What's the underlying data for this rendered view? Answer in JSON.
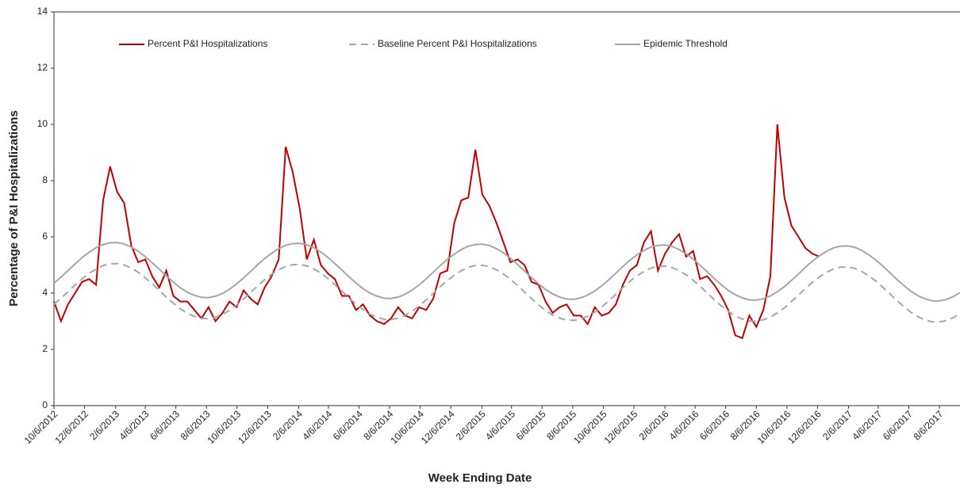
{
  "chart_data": {
    "type": "line",
    "y_label": "Percentage of P&I Hospitalizations",
    "x_label": "Week Ending Date",
    "x": [
      "10/6/2012",
      "10/20/2012",
      "11/3/2012",
      "11/17/2012",
      "12/1/2012",
      "12/15/2012",
      "12/29/2012",
      "1/12/2013",
      "1/26/2013",
      "2/9/2013",
      "2/23/2013",
      "3/9/2013",
      "3/23/2013",
      "4/6/2013",
      "4/20/2013",
      "5/4/2013",
      "5/18/2013",
      "6/1/2013",
      "6/15/2013",
      "6/29/2013",
      "7/13/2013",
      "7/27/2013",
      "8/10/2013",
      "8/24/2013",
      "9/7/2013",
      "9/21/2013",
      "10/5/2013",
      "10/19/2013",
      "11/2/2013",
      "11/16/2013",
      "11/30/2013",
      "12/14/2013",
      "12/28/2013",
      "1/11/2014",
      "1/25/2014",
      "2/8/2014",
      "2/22/2014",
      "3/8/2014",
      "3/22/2014",
      "4/5/2014",
      "4/19/2014",
      "5/3/2014",
      "5/17/2014",
      "5/31/2014",
      "6/14/2014",
      "6/28/2014",
      "7/12/2014",
      "7/26/2014",
      "8/9/2014",
      "8/23/2014",
      "9/6/2014",
      "9/20/2014",
      "10/4/2014",
      "10/18/2014",
      "11/1/2014",
      "11/15/2014",
      "11/29/2014",
      "12/13/2014",
      "12/27/2014",
      "1/10/2015",
      "1/24/2015",
      "2/7/2015",
      "2/21/2015",
      "3/7/2015",
      "3/21/2015",
      "4/4/2015",
      "4/18/2015",
      "5/2/2015",
      "5/16/2015",
      "5/30/2015",
      "6/13/2015",
      "6/27/2015",
      "7/11/2015",
      "7/25/2015",
      "8/8/2015",
      "8/22/2015",
      "9/5/2015",
      "9/19/2015",
      "10/3/2015",
      "10/17/2015",
      "10/31/2015",
      "11/14/2015",
      "11/28/2015",
      "12/12/2015",
      "12/26/2015",
      "1/9/2016",
      "1/23/2016",
      "2/6/2016",
      "2/20/2016",
      "3/5/2016",
      "3/19/2016",
      "4/2/2016",
      "4/16/2016",
      "4/30/2016",
      "5/14/2016",
      "5/28/2016",
      "6/11/2016",
      "6/25/2016",
      "7/9/2016",
      "7/23/2016",
      "8/6/2016",
      "8/20/2016",
      "9/3/2016",
      "9/17/2016",
      "10/1/2016",
      "10/15/2016",
      "10/29/2016",
      "11/12/2016",
      "11/26/2016",
      "12/10/2016",
      "12/24/2016",
      "1/7/2017",
      "1/21/2017",
      "2/4/2017",
      "2/18/2017",
      "3/4/2017",
      "3/18/2017",
      "4/1/2017",
      "4/15/2017",
      "4/29/2017",
      "5/13/2017",
      "5/27/2017",
      "6/10/2017",
      "6/24/2017",
      "7/8/2017",
      "7/22/2017",
      "8/5/2017",
      "8/19/2017",
      "9/2/2017",
      "9/16/2017"
    ],
    "series": [
      {
        "name": "Percent P&I Hospitalizations",
        "color": "#c00000",
        "style": "solid",
        "values": [
          3.7,
          3.0,
          3.6,
          4.0,
          4.4,
          4.5,
          4.3,
          7.3,
          8.5,
          7.6,
          7.2,
          5.7,
          5.1,
          5.2,
          4.6,
          4.2,
          4.8,
          3.9,
          3.7,
          3.7,
          3.4,
          3.1,
          3.5,
          3.0,
          3.3,
          3.7,
          3.5,
          4.1,
          3.8,
          3.6,
          4.2,
          4.6,
          5.2,
          9.2,
          8.3,
          7.0,
          5.2,
          5.9,
          5.0,
          4.7,
          4.5,
          3.9,
          3.9,
          3.4,
          3.6,
          3.2,
          3.0,
          2.9,
          3.1,
          3.5,
          3.2,
          3.1,
          3.5,
          3.4,
          3.8,
          4.7,
          4.8,
          6.5,
          7.3,
          7.4,
          9.1,
          7.5,
          7.1,
          6.5,
          5.8,
          5.1,
          5.2,
          5.0,
          4.4,
          4.3,
          3.7,
          3.3,
          3.5,
          3.6,
          3.2,
          3.2,
          2.9,
          3.5,
          3.2,
          3.3,
          3.6,
          4.3,
          4.8,
          5.0,
          5.8,
          6.2,
          4.8,
          5.4,
          5.8,
          6.1,
          5.3,
          5.5,
          4.5,
          4.6,
          4.3,
          3.9,
          3.4,
          2.5,
          2.4,
          3.2,
          2.8,
          3.4,
          4.6,
          10.0,
          7.4,
          6.4,
          6.0,
          5.6,
          5.4,
          5.3,
          null,
          null,
          null,
          null,
          null,
          null,
          null,
          null,
          null,
          null,
          null,
          null,
          null,
          null,
          null,
          null,
          null,
          null,
          null,
          null
        ]
      },
      {
        "name": "Baseline Percent P&I Hospitalizations",
        "color": "#a6a6a6",
        "style": "dashed",
        "values": [
          3.6,
          3.82,
          4.05,
          4.29,
          4.51,
          4.7,
          4.86,
          4.98,
          5.04,
          5.05,
          5.0,
          4.89,
          4.74,
          4.55,
          4.33,
          4.1,
          3.86,
          3.64,
          3.44,
          3.28,
          3.17,
          3.1,
          3.09,
          3.14,
          3.24,
          3.39,
          3.57,
          3.79,
          4.02,
          4.26,
          4.48,
          4.67,
          4.83,
          4.95,
          5.01,
          5.02,
          4.97,
          4.86,
          4.71,
          4.52,
          4.3,
          4.07,
          3.83,
          3.61,
          3.41,
          3.25,
          3.14,
          3.07,
          3.06,
          3.11,
          3.21,
          3.36,
          3.54,
          3.76,
          3.99,
          4.23,
          4.45,
          4.64,
          4.8,
          4.92,
          4.98,
          4.99,
          4.94,
          4.83,
          4.68,
          4.49,
          4.27,
          4.04,
          3.8,
          3.58,
          3.38,
          3.22,
          3.11,
          3.04,
          3.03,
          3.08,
          3.18,
          3.33,
          3.51,
          3.73,
          3.96,
          4.2,
          4.42,
          4.61,
          4.77,
          4.89,
          4.95,
          4.96,
          4.91,
          4.8,
          4.65,
          4.46,
          4.24,
          4.01,
          3.77,
          3.55,
          3.35,
          3.19,
          3.08,
          3.01,
          3.0,
          3.05,
          3.15,
          3.3,
          3.48,
          3.7,
          3.93,
          4.17,
          4.39,
          4.58,
          4.74,
          4.86,
          4.92,
          4.93,
          4.88,
          4.77,
          4.62,
          4.43,
          4.21,
          3.98,
          3.74,
          3.52,
          3.32,
          3.16,
          3.05,
          2.98,
          2.97,
          3.02,
          3.12,
          3.27
        ]
      },
      {
        "name": "Epidemic Threshold",
        "color": "#a6a6a6",
        "style": "solid",
        "values": [
          4.35,
          4.57,
          4.8,
          5.04,
          5.26,
          5.45,
          5.61,
          5.73,
          5.79,
          5.8,
          5.75,
          5.64,
          5.49,
          5.3,
          5.08,
          4.85,
          4.61,
          4.39,
          4.19,
          4.03,
          3.92,
          3.85,
          3.84,
          3.89,
          3.99,
          4.14,
          4.32,
          4.54,
          4.77,
          5.01,
          5.23,
          5.42,
          5.58,
          5.7,
          5.76,
          5.77,
          5.72,
          5.61,
          5.46,
          5.27,
          5.05,
          4.82,
          4.58,
          4.36,
          4.16,
          4.0,
          3.89,
          3.82,
          3.81,
          3.86,
          3.96,
          4.11,
          4.29,
          4.51,
          4.74,
          4.98,
          5.2,
          5.39,
          5.55,
          5.67,
          5.73,
          5.74,
          5.69,
          5.58,
          5.43,
          5.24,
          5.02,
          4.79,
          4.55,
          4.33,
          4.13,
          3.97,
          3.86,
          3.79,
          3.78,
          3.83,
          3.93,
          4.08,
          4.26,
          4.48,
          4.71,
          4.95,
          5.17,
          5.36,
          5.52,
          5.64,
          5.7,
          5.71,
          5.66,
          5.55,
          5.4,
          5.21,
          4.99,
          4.76,
          4.52,
          4.3,
          4.1,
          3.94,
          3.83,
          3.76,
          3.75,
          3.8,
          3.9,
          4.05,
          4.23,
          4.45,
          4.68,
          4.92,
          5.14,
          5.33,
          5.49,
          5.61,
          5.67,
          5.68,
          5.63,
          5.52,
          5.37,
          5.18,
          4.96,
          4.73,
          4.49,
          4.27,
          4.07,
          3.91,
          3.8,
          3.73,
          3.72,
          3.77,
          3.87,
          4.02
        ]
      }
    ],
    "xlim": [
      "10/6/2012",
      "9/16/2017"
    ],
    "xticks": [
      "10/6/2012",
      "12/6/2012",
      "2/6/2013",
      "4/6/2013",
      "6/6/2013",
      "8/6/2013",
      "10/6/2013",
      "12/6/2013",
      "2/6/2014",
      "4/6/2014",
      "6/6/2014",
      "8/6/2014",
      "10/6/2014",
      "12/6/2014",
      "2/6/2015",
      "4/6/2015",
      "6/6/2015",
      "8/6/2015",
      "10/6/2015",
      "12/6/2015",
      "2/6/2016",
      "4/6/2016",
      "6/6/2016",
      "8/6/2016",
      "10/6/2016",
      "12/6/2016",
      "2/6/2017",
      "4/6/2017",
      "6/6/2017",
      "8/6/2017"
    ],
    "ylim": [
      0,
      14
    ],
    "yticks": [
      0,
      2,
      4,
      6,
      8,
      10,
      12,
      14
    ],
    "grid": false,
    "legend": "top"
  }
}
